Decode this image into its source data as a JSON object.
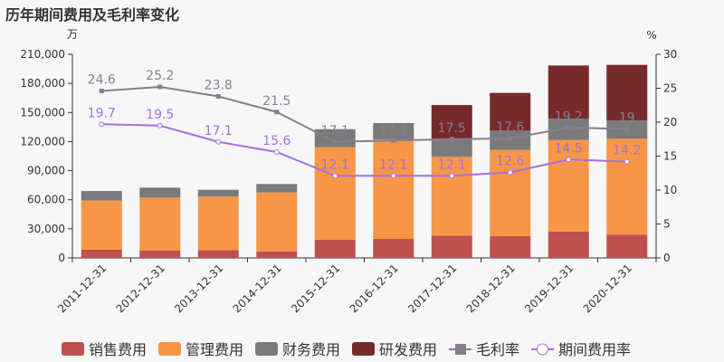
{
  "chart_data": {
    "type": "bar",
    "title": "历年期间费用及毛利率变化",
    "ylabel_left": "万",
    "ylabel_right": "%",
    "categories": [
      "2011-12-31",
      "2012-12-31",
      "2013-12-31",
      "2014-12-31",
      "2015-12-31",
      "2016-12-31",
      "2017-12-31",
      "2018-12-31",
      "2019-12-31",
      "2020-12-31"
    ],
    "ylim_left": [
      0,
      210000
    ],
    "yticks_left": [
      "0",
      "30,000",
      "60,000",
      "90,000",
      "120,000",
      "150,000",
      "180,000",
      "210,000"
    ],
    "ylim_right": [
      0,
      30
    ],
    "yticks_right": [
      "0",
      "5",
      "10",
      "15",
      "20",
      "25",
      "30"
    ],
    "stacked": true,
    "grid": false,
    "legend_position": "bottom",
    "series": [
      {
        "name": "销售费用",
        "type": "bar",
        "color": "#c0504d",
        "values": [
          8400,
          7500,
          8100,
          6800,
          18700,
          19600,
          23000,
          22400,
          27100,
          24000
        ]
      },
      {
        "name": "管理费用",
        "type": "bar",
        "color": "#f79646",
        "values": [
          50700,
          54700,
          55100,
          60700,
          95500,
          102700,
          81200,
          89000,
          94500,
          98900
        ]
      },
      {
        "name": "财务费用",
        "type": "bar",
        "color": "#7a7a7a",
        "values": [
          9900,
          10300,
          7100,
          8700,
          18600,
          16800,
          18700,
          19900,
          22100,
          19000
        ]
      },
      {
        "name": "研发费用",
        "type": "bar",
        "color": "#772a2a",
        "values": [
          0,
          0,
          0,
          0,
          0,
          0,
          34800,
          38900,
          54800,
          57200
        ]
      },
      {
        "name": "毛利率",
        "type": "line",
        "axis": "right",
        "color": "#887d8f",
        "values": [
          24.6,
          25.2,
          23.8,
          21.5,
          17.1,
          17.3,
          17.5,
          17.6,
          19.2,
          19
        ],
        "labels": [
          "24.6",
          "25.2",
          "23.8",
          "21.5",
          "17.1",
          "17.3",
          "17.5",
          "17.6",
          "19.2",
          "19"
        ]
      },
      {
        "name": "期间费用率",
        "type": "line",
        "axis": "right",
        "color": "#a86de0",
        "values": [
          19.7,
          19.5,
          17.1,
          15.6,
          12.1,
          12.1,
          12.1,
          12.6,
          14.5,
          14.2
        ],
        "labels": [
          "19.7",
          "19.5",
          "17.1",
          "15.6",
          "12.1",
          "12.1",
          "12.1",
          "12.6",
          "14.5",
          "14.2"
        ]
      }
    ]
  }
}
